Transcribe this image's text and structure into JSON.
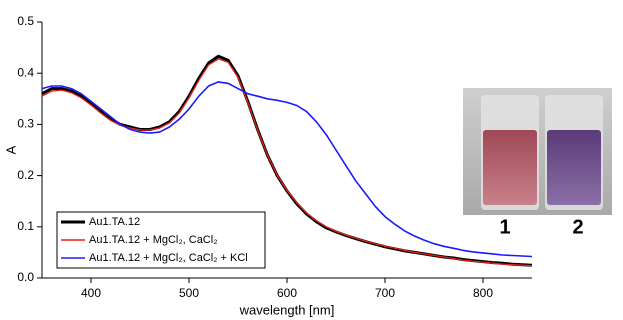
{
  "chart_data": {
    "type": "line",
    "xlabel": "wavelength [nm]",
    "ylabel": "A",
    "x": [
      350,
      360,
      370,
      380,
      390,
      400,
      410,
      420,
      430,
      440,
      450,
      460,
      470,
      480,
      490,
      500,
      510,
      520,
      530,
      540,
      550,
      560,
      570,
      580,
      590,
      600,
      610,
      620,
      630,
      640,
      650,
      660,
      670,
      680,
      690,
      700,
      710,
      720,
      730,
      740,
      750,
      760,
      770,
      780,
      790,
      800,
      810,
      820,
      830,
      840,
      850
    ],
    "xlim": [
      350,
      850
    ],
    "xticks": [
      400,
      500,
      600,
      700,
      800
    ],
    "ylim": [
      0,
      0.5
    ],
    "yticks": [
      {
        "value": 0,
        "label": "0.0"
      },
      0.1,
      0.2,
      0.3,
      0.4,
      0.5
    ],
    "legend": "lower-left",
    "series": [
      {
        "name": "Au1.TA.12",
        "color": "#000000",
        "values": [
          0.36,
          0.37,
          0.37,
          0.365,
          0.355,
          0.34,
          0.325,
          0.31,
          0.3,
          0.295,
          0.29,
          0.29,
          0.295,
          0.305,
          0.325,
          0.355,
          0.39,
          0.42,
          0.433,
          0.425,
          0.395,
          0.345,
          0.29,
          0.24,
          0.2,
          0.17,
          0.145,
          0.125,
          0.11,
          0.098,
          0.09,
          0.083,
          0.077,
          0.071,
          0.066,
          0.061,
          0.057,
          0.053,
          0.05,
          0.047,
          0.044,
          0.041,
          0.039,
          0.036,
          0.034,
          0.032,
          0.03,
          0.029,
          0.027,
          0.026,
          0.025
        ]
      },
      {
        "name": "Au1.TA.12 + MgCl₂, CaCl₂",
        "color": "#e8201a",
        "values": [
          0.355,
          0.365,
          0.367,
          0.362,
          0.352,
          0.338,
          0.322,
          0.308,
          0.298,
          0.293,
          0.289,
          0.289,
          0.293,
          0.303,
          0.322,
          0.352,
          0.386,
          0.416,
          0.428,
          0.421,
          0.392,
          0.343,
          0.289,
          0.24,
          0.201,
          0.171,
          0.147,
          0.127,
          0.112,
          0.1,
          0.091,
          0.084,
          0.078,
          0.072,
          0.067,
          0.062,
          0.058,
          0.054,
          0.05,
          0.047,
          0.044,
          0.041,
          0.038,
          0.035,
          0.033,
          0.031,
          0.029,
          0.027,
          0.026,
          0.025,
          0.024
        ]
      },
      {
        "name": "Au1.TA.12 + MgCl₂, CaCl₂ + KCl",
        "color": "#1a1aff",
        "values": [
          0.37,
          0.375,
          0.375,
          0.37,
          0.36,
          0.345,
          0.33,
          0.315,
          0.3,
          0.29,
          0.285,
          0.283,
          0.285,
          0.295,
          0.31,
          0.33,
          0.355,
          0.375,
          0.383,
          0.38,
          0.37,
          0.36,
          0.355,
          0.35,
          0.347,
          0.343,
          0.337,
          0.325,
          0.305,
          0.28,
          0.25,
          0.22,
          0.19,
          0.165,
          0.14,
          0.12,
          0.105,
          0.092,
          0.082,
          0.074,
          0.067,
          0.062,
          0.058,
          0.054,
          0.051,
          0.049,
          0.047,
          0.045,
          0.044,
          0.043,
          0.042
        ]
      }
    ]
  },
  "image": {
    "labels": [
      "1",
      "2"
    ]
  }
}
